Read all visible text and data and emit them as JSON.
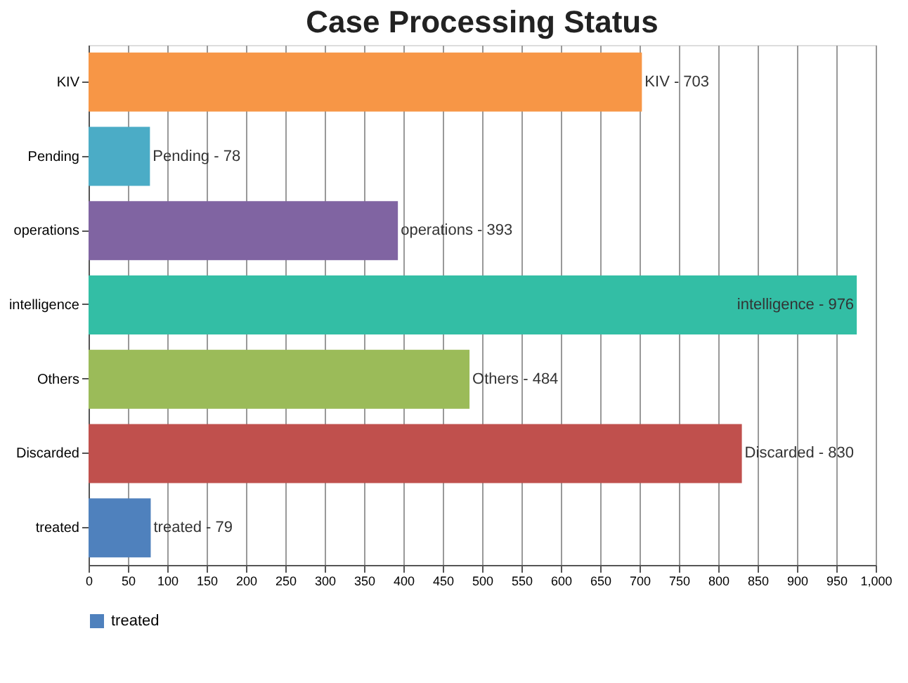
{
  "chart_data": {
    "type": "bar",
    "orientation": "horizontal",
    "title": "Case Processing Status",
    "categories": [
      "KIV",
      "Pending",
      "operations",
      "intelligence",
      "Others",
      "Discarded",
      "treated"
    ],
    "series": [
      {
        "name": "treated",
        "colors": [
          "#f79646",
          "#4bacc6",
          "#8064a2",
          "#33bea5",
          "#9bbb59",
          "#c0504d",
          "#4f81bd"
        ],
        "values": [
          703,
          78,
          393,
          976,
          484,
          830,
          79
        ]
      }
    ],
    "value_labels": [
      "KIV - 703",
      "Pending - 78",
      "operations - 393",
      "intelligence - 976",
      "Others - 484",
      "Discarded - 830",
      "treated - 79"
    ],
    "xlim": [
      0,
      1000
    ],
    "xticks": [
      0,
      50,
      100,
      150,
      200,
      250,
      300,
      350,
      400,
      450,
      500,
      550,
      600,
      650,
      700,
      750,
      800,
      850,
      900,
      950,
      {
        "value": 1000,
        "label": "1,000"
      }
    ],
    "grid": "x",
    "legend": "bottom"
  }
}
